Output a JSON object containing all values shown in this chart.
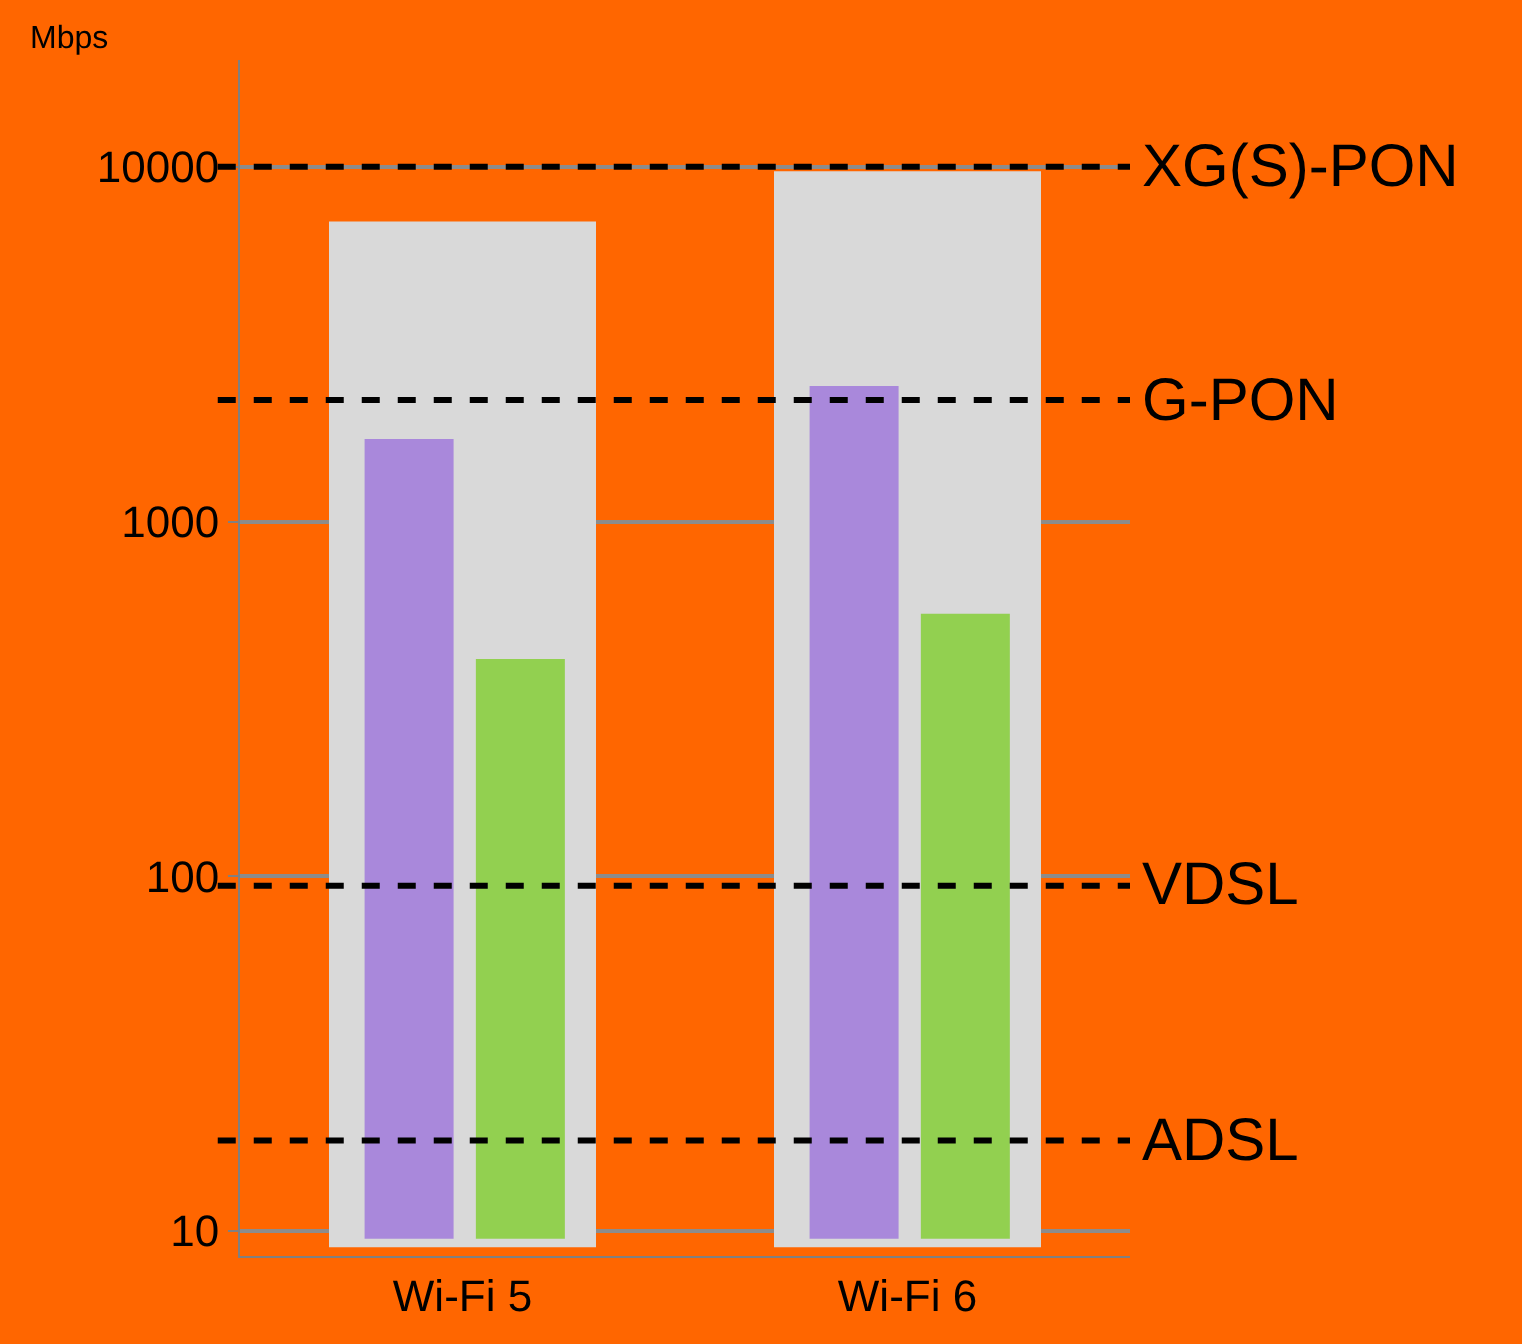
{
  "chart_data": {
    "type": "bar",
    "categories": [
      "Wi-Fi 5",
      "Wi-Fi 6"
    ],
    "ylabel": "Mbps",
    "log": true,
    "ylim": [
      8.5,
      20000
    ],
    "yticks": [
      10,
      100,
      1000,
      10000
    ],
    "grid": "y",
    "series": [
      {
        "color": "#d9d9d9",
        "base": [
          9,
          9
        ],
        "values": [
          7000,
          9700
        ]
      },
      {
        "color": "#a988db",
        "base": [
          9.5,
          9.5
        ],
        "values": [
          1700,
          2400
        ]
      },
      {
        "color": "#92d050",
        "base": [
          9.5,
          9.5
        ],
        "values": [
          400,
          540
        ]
      }
    ],
    "ref_lines": [
      {
        "axis": "y",
        "value": 10000,
        "label": "XG(S)-PON",
        "color": "#000000",
        "line_style": "dashed"
      },
      {
        "axis": "y",
        "value": 2200,
        "label": "G-PON",
        "color": "#000000",
        "line_style": "dashed"
      },
      {
        "axis": "y",
        "value": 94,
        "label": "VDSL",
        "color": "#000000",
        "line_style": "dashed"
      },
      {
        "axis": "y",
        "value": 18,
        "label": "ADSL",
        "color": "#000000",
        "line_style": "dashed"
      }
    ]
  }
}
